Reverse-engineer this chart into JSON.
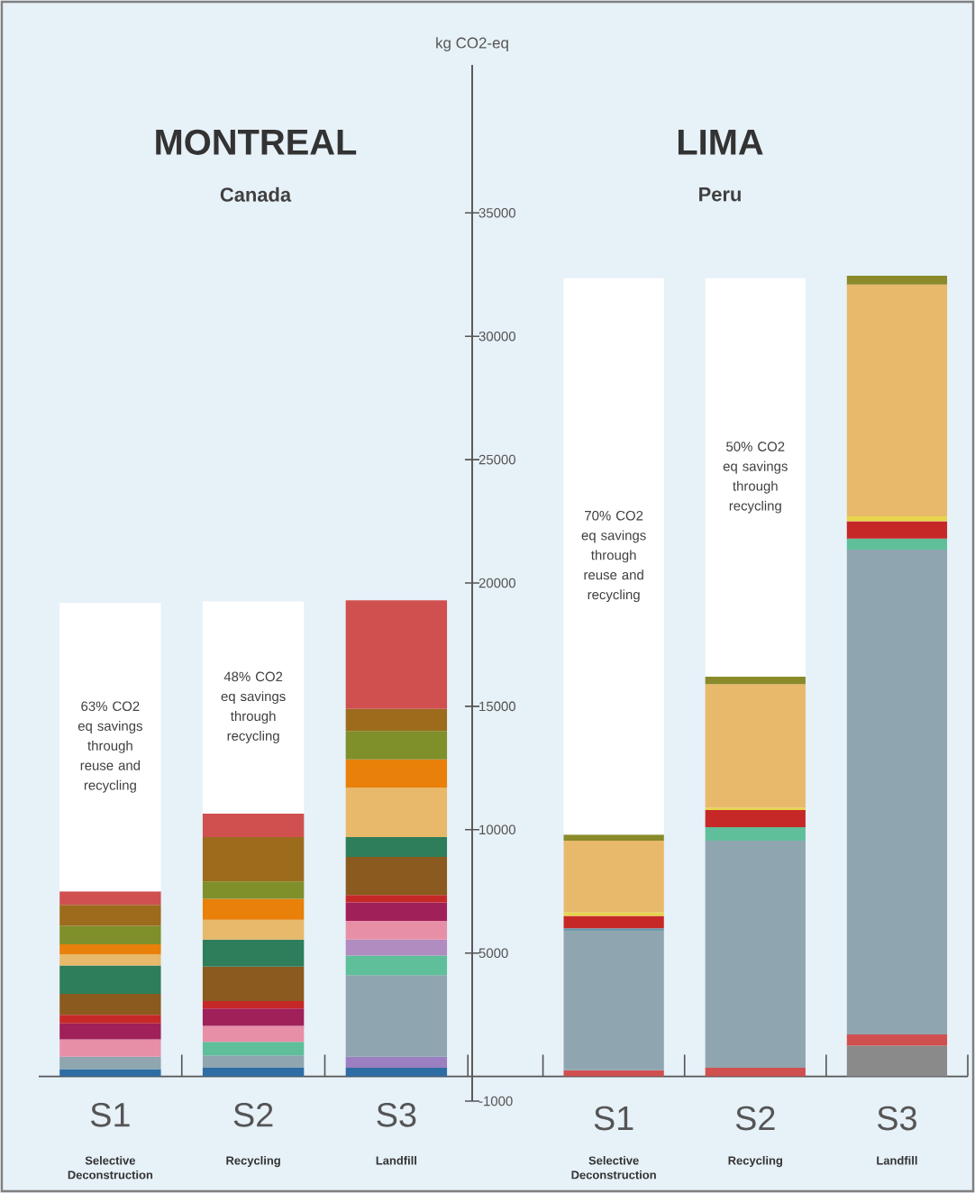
{
  "chart_data": [
    {
      "type": "bar",
      "stacked": true,
      "title": "MONTREAL",
      "subtitle": "Canada",
      "categories": [
        "S1",
        "S2",
        "S3"
      ],
      "ylim": [
        -1000,
        41000
      ],
      "tick_labels": "x",
      "series": [
        {
          "colors": [
            "#2e6da4",
            "#2e6da4",
            "#2e6da4"
          ],
          "values": [
            300,
            350,
            350
          ]
        },
        {
          "colors": [
            "#9b7fc0",
            "#9b7fc0",
            "#9b7fc0"
          ],
          "values": [
            null,
            null,
            450
          ]
        },
        {
          "colors": [
            "#8fa6b0",
            "#8fa6b0",
            "#8fa6b0"
          ],
          "values": [
            500,
            500,
            3300
          ]
        },
        {
          "colors": [
            "#5fbf9a",
            "#5fbf9a",
            "#5fbf9a"
          ],
          "values": [
            null,
            550,
            800
          ]
        },
        {
          "colors": [
            "#b08cc0",
            "#b08cc0",
            "#b08cc0"
          ],
          "values": [
            null,
            null,
            650
          ]
        },
        {
          "colors": [
            "#e88fa8",
            "#e88fa8",
            "#e88fa8"
          ],
          "values": [
            700,
            650,
            750
          ]
        },
        {
          "colors": [
            "#a0205a",
            "#a0205a",
            "#a0205a"
          ],
          "values": [
            650,
            700,
            750
          ]
        },
        {
          "colors": [
            "#c62828",
            "#c62828",
            "#c62828"
          ],
          "values": [
            350,
            300,
            300
          ]
        },
        {
          "colors": [
            "#8b5a1e",
            "#8b5a1e",
            "#8b5a1e"
          ],
          "values": [
            850,
            1400,
            1550
          ]
        },
        {
          "colors": [
            "#2e7d5b",
            "#2e7d5b",
            "#2e7d5b"
          ],
          "values": [
            1150,
            1100,
            800
          ]
        },
        {
          "colors": [
            "#e8b96a",
            "#e8b96a",
            "#e8b96a"
          ],
          "values": [
            450,
            800,
            2000
          ]
        },
        {
          "colors": [
            "#e8800a",
            "#e8800a",
            "#e8800a"
          ],
          "values": [
            400,
            850,
            1150
          ]
        },
        {
          "colors": [
            "#7f8f2a",
            "#7f8f2a",
            "#7f8f2a"
          ],
          "values": [
            750,
            700,
            1150
          ]
        },
        {
          "colors": [
            "#9c6b1c",
            "#9c6b1c",
            "#9c6b1c"
          ],
          "values": [
            850,
            1800,
            900
          ]
        },
        {
          "colors": [
            "#d05050",
            "#d05050",
            "#d05050"
          ],
          "values": [
            550,
            950,
            4400
          ]
        },
        {
          "colors": [
            "#ffffff",
            "#ffffff",
            "#ffffff"
          ],
          "values": [
            11700,
            8600,
            null
          ]
        }
      ],
      "annotations": [
        "Selective Deconstruction",
        "Recycling",
        "Landfill",
        "63% CO2 eq savings through reuse and recycling",
        "48% CO2 eq savings through recycling"
      ]
    },
    {
      "type": "bar",
      "stacked": true,
      "title": "LIMA",
      "subtitle": "Peru",
      "ylabel": "kg CO2-eq",
      "categories": [
        "S1",
        "S2",
        "S3"
      ],
      "ylim": [
        -1000,
        41000
      ],
      "yticks": [
        -1000,
        5000,
        10000,
        15000,
        20000,
        25000,
        30000,
        35000
      ],
      "series": [
        {
          "colors": [
            "#d05050",
            "#d05050",
            "#8a8a8a"
          ],
          "values": [
            250,
            350,
            1250
          ]
        },
        {
          "colors": [
            "#d05050",
            "#d05050",
            "#d05050"
          ],
          "values": [
            null,
            null,
            450
          ]
        },
        {
          "colors": [
            "#8fa6b0",
            "#8fa6b0",
            "#8fa6b0"
          ],
          "values": [
            5650,
            9200,
            19650
          ]
        },
        {
          "colors": [
            "#6a9bb0",
            "#5fbf9a",
            "#5fbf9a"
          ],
          "values": [
            100,
            550,
            450
          ]
        },
        {
          "colors": [
            "#c62828",
            "#c62828",
            "#c62828"
          ],
          "values": [
            500,
            700,
            700
          ]
        },
        {
          "colors": [
            "#e8d44d",
            "#e8d44d",
            "#e8d44d"
          ],
          "values": [
            150,
            100,
            200
          ]
        },
        {
          "colors": [
            "#e8b96a",
            "#e8b96a",
            "#e8b96a"
          ],
          "values": [
            2900,
            5000,
            9400
          ]
        },
        {
          "colors": [
            "#8a8a2a",
            "#8a8a2a",
            "#8a8a2a"
          ],
          "values": [
            250,
            300,
            350
          ]
        },
        {
          "colors": [
            "#ffffff",
            "#ffffff",
            "#ffffff"
          ],
          "values": [
            22550,
            16150,
            null
          ]
        }
      ],
      "annotations": [
        "Selective Deconstruction",
        "Recycling",
        "Landfill",
        "70% CO2 eq savings through reuse and recycling",
        "50% CO2 eq savings through recycling"
      ]
    }
  ]
}
